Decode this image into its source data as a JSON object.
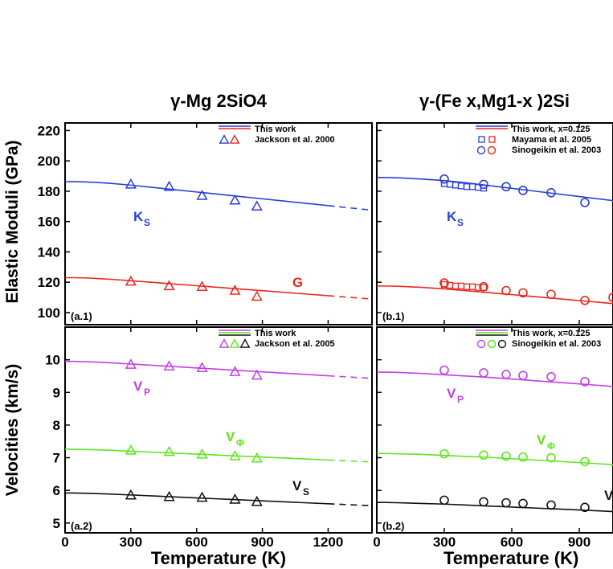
{
  "figure": {
    "titles": [
      "γ-Mg 2SiO4",
      "γ-(Fe x,Mg1-x )2Si"
    ],
    "ylabels": [
      "Elastic Moduli (GPa)",
      "Velocities (km/s)"
    ],
    "xlabel": "Temperature (K)"
  },
  "chart_data": [
    {
      "id": "a1",
      "type": "line",
      "panel_label": "(a.1)",
      "title": "γ-Mg 2SiO4",
      "xlabel": "",
      "ylabel": "Elastic Moduli (GPa)",
      "xlim": [
        0,
        1400
      ],
      "ylim": [
        92,
        225
      ],
      "yticks": [
        "220",
        "200",
        "180",
        "160",
        "140",
        "120",
        "100"
      ],
      "legend": [
        "This work",
        "Jackson et al. 2000"
      ],
      "series": [
        {
          "name": "K_S",
          "label": "K",
          "sub": "S",
          "color": "#2a3fd6",
          "line_x": [
            0,
            40,
            100,
            200,
            300,
            400,
            500,
            600,
            700,
            800,
            900,
            1000,
            1100,
            1200,
            1300,
            1400
          ],
          "line_y": [
            186.3,
            186.3,
            186.1,
            185.3,
            184.0,
            182.5,
            181.0,
            179.5,
            178.0,
            176.5,
            175.0,
            173.5,
            172.0,
            170.5,
            169.0,
            167.5
          ],
          "dash_from": 1200,
          "points_x": [
            300,
            475,
            625,
            775,
            875
          ],
          "points_y": [
            184.5,
            183.0,
            177.0,
            174.0,
            170.0
          ]
        },
        {
          "name": "G",
          "label": "G",
          "sub": "",
          "color": "#e8281e",
          "line_x": [
            0,
            40,
            100,
            200,
            300,
            400,
            500,
            600,
            700,
            800,
            900,
            1000,
            1100,
            1200,
            1300,
            1400
          ],
          "line_y": [
            123.0,
            123.0,
            122.8,
            122.0,
            121.0,
            119.9,
            118.8,
            117.7,
            116.6,
            115.5,
            114.4,
            113.3,
            112.2,
            111.1,
            110.0,
            108.9
          ],
          "dash_from": 1200,
          "points_x": [
            300,
            475,
            625,
            775,
            875
          ],
          "points_y": [
            120.5,
            117.5,
            117.0,
            114.5,
            110.5
          ]
        }
      ]
    },
    {
      "id": "b1",
      "type": "line",
      "panel_label": "(b.1)",
      "title": "γ-(Fe x,Mg1-x )2Si",
      "xlabel": "",
      "ylabel": "",
      "xlim": [
        0,
        1050
      ],
      "ylim": [
        92,
        225
      ],
      "legend": [
        "This work, x=0.125",
        "Mayama et al. 2005",
        "Sinogeikin et al. 2003"
      ],
      "series": [
        {
          "name": "K_S",
          "label": "K",
          "sub": "S",
          "color": "#2a3fd6",
          "line_x": [
            0,
            40,
            100,
            200,
            300,
            400,
            500,
            600,
            700,
            800,
            900,
            1000,
            1050
          ],
          "line_y": [
            189.0,
            189.0,
            188.8,
            188.0,
            187.0,
            185.5,
            183.7,
            181.9,
            180.1,
            178.3,
            176.5,
            174.7,
            173.8
          ],
          "squares_x": [
            300,
            325,
            350,
            375,
            400,
            425,
            450,
            475
          ],
          "squares_y": [
            185.0,
            184.5,
            184.0,
            183.5,
            183.0,
            183.0,
            182.5,
            182.0
          ],
          "circles_x": [
            300,
            475,
            575,
            650,
            775,
            925
          ],
          "circles_y": [
            188.0,
            184.5,
            183.0,
            180.5,
            179.0,
            172.5
          ]
        },
        {
          "name": "G",
          "label": "",
          "sub": "",
          "color": "#e8281e",
          "line_x": [
            0,
            40,
            100,
            200,
            300,
            400,
            500,
            600,
            700,
            800,
            900,
            1000,
            1050
          ],
          "line_y": [
            117.5,
            117.5,
            117.3,
            116.6,
            115.6,
            114.4,
            113.1,
            111.8,
            110.5,
            109.2,
            107.9,
            106.6,
            105.9
          ],
          "squares_x": [
            300,
            325,
            350,
            375,
            400,
            425,
            450,
            475
          ],
          "squares_y": [
            118.5,
            118.0,
            117.5,
            117.5,
            117.0,
            117.0,
            116.5,
            116.5
          ],
          "circles_x": [
            300,
            475,
            575,
            650,
            775,
            925,
            1050
          ],
          "circles_y": [
            119.5,
            117.0,
            114.5,
            113.0,
            112.0,
            108.0,
            110.0
          ]
        }
      ]
    },
    {
      "id": "a2",
      "type": "line",
      "panel_label": "(a.2)",
      "title": "",
      "xlabel": "Temperature (K)",
      "ylabel": "Velocities (km/s)",
      "xlim": [
        0,
        1400
      ],
      "ylim": [
        4.7,
        11.0
      ],
      "yticks": [
        "10",
        "9",
        "8",
        "7",
        "6",
        "5"
      ],
      "xticks": [
        "0",
        "300",
        "600",
        "900",
        "1200"
      ],
      "legend": [
        "This work",
        "Jackson et al. 2005"
      ],
      "series": [
        {
          "name": "V_P",
          "label": "V",
          "sub": "P",
          "color": "#c33fe6",
          "line_x": [
            0,
            40,
            100,
            200,
            300,
            400,
            500,
            600,
            700,
            800,
            900,
            1000,
            1100,
            1200,
            1300,
            1400
          ],
          "line_y": [
            9.95,
            9.95,
            9.94,
            9.91,
            9.87,
            9.83,
            9.79,
            9.75,
            9.71,
            9.67,
            9.63,
            9.59,
            9.55,
            9.51,
            9.47,
            9.43
          ],
          "dash_from": 1200,
          "points_x": [
            300,
            475,
            625,
            775,
            875
          ],
          "points_y": [
            9.85,
            9.8,
            9.75,
            9.63,
            9.52
          ]
        },
        {
          "name": "V_Phi",
          "label": "V",
          "sub": "Φ",
          "color": "#5de61c",
          "line_x": [
            0,
            40,
            100,
            200,
            300,
            400,
            500,
            600,
            700,
            800,
            900,
            1000,
            1100,
            1200,
            1300,
            1400
          ],
          "line_y": [
            7.26,
            7.26,
            7.25,
            7.23,
            7.2,
            7.17,
            7.14,
            7.11,
            7.08,
            7.05,
            7.02,
            6.99,
            6.96,
            6.93,
            6.9,
            6.87
          ],
          "dash_from": 1200,
          "points_x": [
            300,
            475,
            625,
            775,
            875
          ],
          "points_y": [
            7.22,
            7.18,
            7.1,
            7.05,
            6.98
          ]
        },
        {
          "name": "V_S",
          "label": "V",
          "sub": "S",
          "color": "#111111",
          "line_x": [
            0,
            40,
            100,
            200,
            300,
            400,
            500,
            600,
            700,
            800,
            900,
            1000,
            1100,
            1200,
            1300,
            1400
          ],
          "line_y": [
            5.92,
            5.92,
            5.91,
            5.89,
            5.86,
            5.83,
            5.8,
            5.77,
            5.74,
            5.71,
            5.68,
            5.65,
            5.62,
            5.59,
            5.56,
            5.53
          ],
          "dash_from": 1200,
          "points_x": [
            300,
            475,
            625,
            775,
            875
          ],
          "points_y": [
            5.85,
            5.8,
            5.78,
            5.72,
            5.65
          ]
        }
      ]
    },
    {
      "id": "b2",
      "type": "line",
      "panel_label": "(b.2)",
      "title": "",
      "xlabel": "Temperature (K)",
      "ylabel": "",
      "xlim": [
        0,
        1050
      ],
      "ylim": [
        4.7,
        11.0
      ],
      "xticks": [
        "0",
        "300",
        "600",
        "900"
      ],
      "legend": [
        "This work, x=0.125",
        "Sinogeikin et al. 2003"
      ],
      "series": [
        {
          "name": "V_P",
          "label": "V",
          "sub": "P",
          "color": "#c33fe6",
          "line_x": [
            0,
            40,
            100,
            200,
            300,
            400,
            500,
            600,
            700,
            800,
            900,
            1000,
            1050
          ],
          "line_y": [
            9.62,
            9.62,
            9.61,
            9.58,
            9.54,
            9.5,
            9.46,
            9.41,
            9.36,
            9.31,
            9.26,
            9.21,
            9.18
          ],
          "circles_x": [
            300,
            475,
            575,
            650,
            775,
            925
          ],
          "circles_y": [
            9.68,
            9.6,
            9.55,
            9.52,
            9.48,
            9.33
          ]
        },
        {
          "name": "V_Phi",
          "label": "V",
          "sub": "Φ",
          "color": "#5de61c",
          "line_x": [
            0,
            40,
            100,
            200,
            300,
            400,
            500,
            600,
            700,
            800,
            900,
            1000,
            1050
          ],
          "line_y": [
            7.13,
            7.13,
            7.12,
            7.1,
            7.07,
            7.04,
            7.01,
            6.97,
            6.93,
            6.89,
            6.85,
            6.81,
            6.79
          ],
          "circles_x": [
            300,
            475,
            575,
            650,
            775,
            925
          ],
          "circles_y": [
            7.12,
            7.08,
            7.05,
            7.02,
            7.0,
            6.88
          ]
        },
        {
          "name": "V_S",
          "label": "V",
          "sub": "",
          "color": "#111111",
          "line_x": [
            0,
            40,
            100,
            200,
            300,
            400,
            500,
            600,
            700,
            800,
            900,
            1000,
            1050
          ],
          "line_y": [
            5.63,
            5.63,
            5.62,
            5.6,
            5.58,
            5.55,
            5.52,
            5.49,
            5.46,
            5.43,
            5.4,
            5.37,
            5.35
          ],
          "circles_x": [
            300,
            475,
            575,
            650,
            775,
            925
          ],
          "circles_y": [
            5.7,
            5.65,
            5.62,
            5.6,
            5.55,
            5.48
          ]
        }
      ]
    }
  ]
}
